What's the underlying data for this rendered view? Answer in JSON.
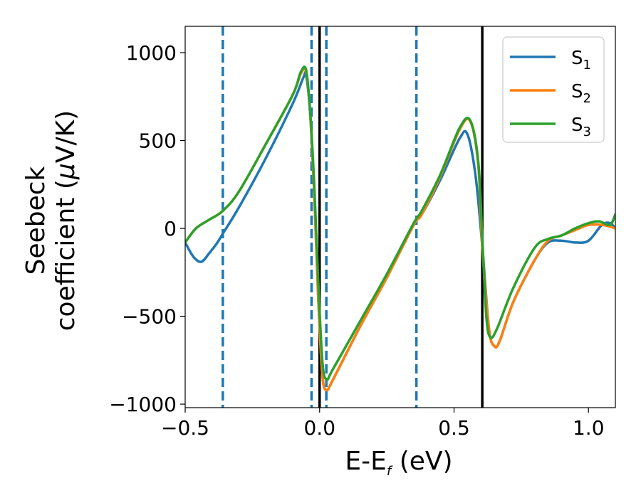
{
  "chart_data": {
    "type": "line",
    "xlabel": {
      "main": "E-E",
      "sub": "f",
      "unit": " (eV)"
    },
    "ylabel": {
      "line1": "Seebeck",
      "line2_prefix": "coefficient  (",
      "line2_mu": "μ",
      "line2_suffix": "V/K)"
    },
    "xlim": [
      -0.5,
      1.1
    ],
    "ylim": [
      -1020,
      1150
    ],
    "xticks": [
      {
        "value": -0.5,
        "label": "−0.5"
      },
      {
        "value": 0.0,
        "label": "0.0"
      },
      {
        "value": 0.5,
        "label": "0.5"
      },
      {
        "value": 1.0,
        "label": "1.0"
      }
    ],
    "yticks": [
      {
        "value": 1000,
        "label": "1000"
      },
      {
        "value": 500,
        "label": "500"
      },
      {
        "value": 0,
        "label": "0"
      },
      {
        "value": -500,
        "label": "−500"
      },
      {
        "value": -1000,
        "label": "−1000"
      }
    ],
    "grid": false,
    "legend_position": "top-right",
    "series": [
      {
        "name_base": "S",
        "name_sub": "1",
        "color": "#1f77b4",
        "points": [
          [
            -0.5,
            -80
          ],
          [
            -0.47,
            -160
          ],
          [
            -0.44,
            -190
          ],
          [
            -0.41,
            -140
          ],
          [
            -0.38,
            -80
          ],
          [
            -0.36,
            -30
          ],
          [
            -0.3,
            120
          ],
          [
            -0.2,
            400
          ],
          [
            -0.1,
            710
          ],
          [
            -0.06,
            860
          ],
          [
            -0.05,
            870
          ],
          [
            -0.035,
            650
          ],
          [
            -0.02,
            200
          ],
          [
            -0.005,
            -400
          ],
          [
            0.01,
            -830
          ],
          [
            0.025,
            -920
          ],
          [
            0.05,
            -860
          ],
          [
            0.15,
            -560
          ],
          [
            0.25,
            -280
          ],
          [
            0.35,
            20
          ],
          [
            0.38,
            80
          ],
          [
            0.45,
            280
          ],
          [
            0.52,
            510
          ],
          [
            0.55,
            535
          ],
          [
            0.58,
            300
          ],
          [
            0.605,
            -100
          ],
          [
            0.63,
            -570
          ],
          [
            0.65,
            -670
          ],
          [
            0.67,
            -640
          ],
          [
            0.72,
            -420
          ],
          [
            0.8,
            -180
          ],
          [
            0.85,
            -80
          ],
          [
            0.9,
            -70
          ],
          [
            0.95,
            -80
          ],
          [
            1.0,
            -70
          ],
          [
            1.05,
            20
          ],
          [
            1.08,
            30
          ],
          [
            1.1,
            0
          ]
        ]
      },
      {
        "name_base": "S",
        "name_sub": "2",
        "color": "#ff7f0e",
        "points": [
          [
            -0.5,
            -80
          ],
          [
            -0.46,
            0
          ],
          [
            -0.41,
            50
          ],
          [
            -0.36,
            100
          ],
          [
            -0.3,
            210
          ],
          [
            -0.2,
            480
          ],
          [
            -0.1,
            760
          ],
          [
            -0.07,
            880
          ],
          [
            -0.05,
            890
          ],
          [
            -0.035,
            650
          ],
          [
            -0.02,
            200
          ],
          [
            -0.005,
            -400
          ],
          [
            0.01,
            -830
          ],
          [
            0.025,
            -920
          ],
          [
            0.05,
            -860
          ],
          [
            0.15,
            -560
          ],
          [
            0.25,
            -280
          ],
          [
            0.35,
            20
          ],
          [
            0.38,
            80
          ],
          [
            0.45,
            300
          ],
          [
            0.52,
            560
          ],
          [
            0.56,
            610
          ],
          [
            0.59,
            360
          ],
          [
            0.605,
            -100
          ],
          [
            0.63,
            -570
          ],
          [
            0.65,
            -670
          ],
          [
            0.67,
            -640
          ],
          [
            0.72,
            -420
          ],
          [
            0.8,
            -180
          ],
          [
            0.85,
            -70
          ],
          [
            0.9,
            -40
          ],
          [
            0.95,
            -10
          ],
          [
            1.0,
            20
          ],
          [
            1.05,
            20
          ],
          [
            1.08,
            10
          ],
          [
            1.1,
            0
          ]
        ]
      },
      {
        "name_base": "S",
        "name_sub": "3",
        "color": "#2ca02c",
        "points": [
          [
            -0.5,
            -80
          ],
          [
            -0.46,
            0
          ],
          [
            -0.41,
            50
          ],
          [
            -0.36,
            100
          ],
          [
            -0.3,
            210
          ],
          [
            -0.2,
            480
          ],
          [
            -0.1,
            760
          ],
          [
            -0.07,
            890
          ],
          [
            -0.05,
            900
          ],
          [
            -0.035,
            660
          ],
          [
            -0.02,
            250
          ],
          [
            -0.005,
            -300
          ],
          [
            0.01,
            -750
          ],
          [
            0.025,
            -860
          ],
          [
            0.05,
            -800
          ],
          [
            0.15,
            -530
          ],
          [
            0.25,
            -260
          ],
          [
            0.35,
            30
          ],
          [
            0.38,
            100
          ],
          [
            0.45,
            310
          ],
          [
            0.52,
            570
          ],
          [
            0.56,
            615
          ],
          [
            0.59,
            380
          ],
          [
            0.605,
            -50
          ],
          [
            0.62,
            -500
          ],
          [
            0.635,
            -620
          ],
          [
            0.66,
            -570
          ],
          [
            0.72,
            -340
          ],
          [
            0.8,
            -110
          ],
          [
            0.85,
            -60
          ],
          [
            0.9,
            -40
          ],
          [
            0.95,
            0
          ],
          [
            1.0,
            30
          ],
          [
            1.04,
            40
          ],
          [
            1.08,
            20
          ],
          [
            1.1,
            80
          ]
        ]
      }
    ],
    "vlines_dashed": {
      "color": "#1f77b4",
      "x": [
        -0.36,
        -0.03,
        0.025,
        0.36
      ]
    },
    "vlines_solid": {
      "color": "#000000",
      "x": [
        0.0,
        0.605
      ]
    }
  }
}
